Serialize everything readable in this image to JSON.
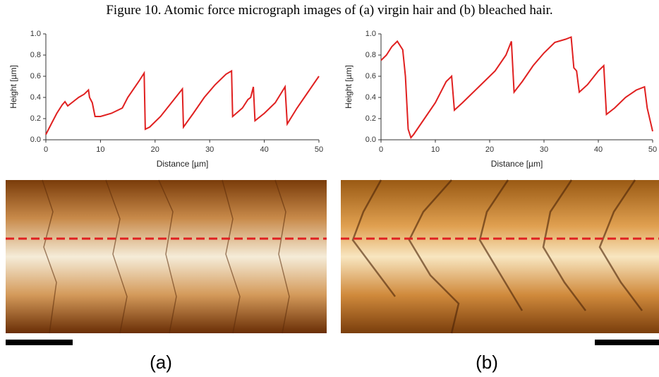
{
  "caption": "Figure 10. Atomic force micrograph images of (a) virgin hair and (b) bleached hair.",
  "panels": [
    "(a)",
    "(b)"
  ],
  "chart_data": [
    {
      "type": "line",
      "xlabel": "Distance [µm]",
      "ylabel": "Height [µm]",
      "color": "#e02020",
      "xlim": [
        0,
        50
      ],
      "xticks": [
        0,
        10,
        20,
        30,
        40,
        50
      ],
      "ylim": [
        0,
        1.0
      ],
      "yticks": [
        {
          "value": 0,
          "label": "0.0"
        },
        0.2,
        0.4,
        0.6,
        0.8,
        {
          "value": 1,
          "label": "1.0"
        }
      ],
      "x": [
        0,
        1,
        2,
        3,
        3.5,
        4,
        5,
        6,
        7,
        7.8,
        8,
        8.5,
        9,
        10,
        12,
        14,
        15,
        17,
        18,
        18.2,
        19,
        21,
        23,
        25,
        25.2,
        27,
        29,
        31,
        33,
        34,
        34.2,
        36,
        37,
        37.5,
        38,
        38.3,
        40,
        42,
        43.8,
        44.2,
        46,
        48,
        50
      ],
      "values": [
        0.05,
        0.15,
        0.25,
        0.33,
        0.36,
        0.32,
        0.36,
        0.4,
        0.43,
        0.47,
        0.4,
        0.35,
        0.22,
        0.22,
        0.25,
        0.3,
        0.4,
        0.55,
        0.63,
        0.1,
        0.12,
        0.22,
        0.35,
        0.48,
        0.12,
        0.25,
        0.4,
        0.52,
        0.62,
        0.65,
        0.22,
        0.3,
        0.38,
        0.4,
        0.5,
        0.18,
        0.25,
        0.35,
        0.5,
        0.15,
        0.3,
        0.45,
        0.6
      ]
    },
    {
      "type": "line",
      "xlabel": "Distance [µm]",
      "ylabel": "Height [µm]",
      "color": "#e02020",
      "xlim": [
        0,
        50
      ],
      "xticks": [
        0,
        10,
        20,
        30,
        40,
        50
      ],
      "ylim": [
        0,
        1.0
      ],
      "yticks": [
        {
          "value": 0,
          "label": "0.0"
        },
        0.2,
        0.4,
        0.6,
        0.8,
        {
          "value": 1,
          "label": "1.0"
        }
      ],
      "x": [
        0,
        1,
        2,
        3,
        4,
        4.5,
        5,
        5.5,
        6,
        8,
        10,
        12,
        13,
        13.5,
        15,
        18,
        21,
        23,
        24,
        24.5,
        26,
        28,
        30,
        32,
        34,
        35,
        35.5,
        36,
        36.5,
        38,
        40,
        41,
        41.5,
        43,
        45,
        47,
        48.5,
        49,
        50
      ],
      "values": [
        0.75,
        0.8,
        0.88,
        0.93,
        0.85,
        0.6,
        0.1,
        0.02,
        0.05,
        0.2,
        0.35,
        0.55,
        0.6,
        0.28,
        0.35,
        0.5,
        0.65,
        0.8,
        0.93,
        0.45,
        0.55,
        0.7,
        0.82,
        0.92,
        0.95,
        0.97,
        0.68,
        0.65,
        0.45,
        0.52,
        0.65,
        0.7,
        0.24,
        0.3,
        0.4,
        0.47,
        0.5,
        0.3,
        0.08
      ]
    }
  ]
}
